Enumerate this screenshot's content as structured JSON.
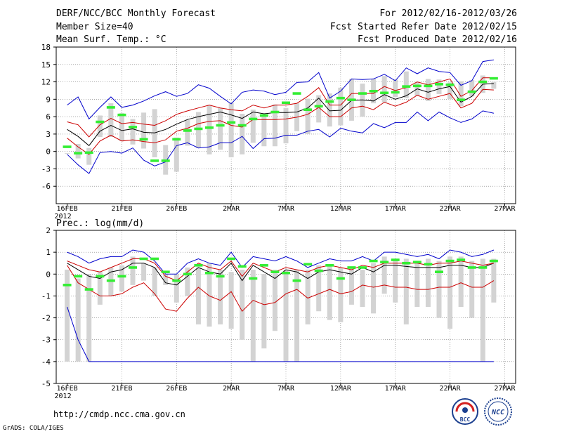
{
  "header": {
    "left": [
      "DERF/NCC/BCC Monthly Forecast",
      "Member Size=40",
      "Mean Surf. Temp.: °C"
    ],
    "right": [
      "For 2012/02/16-2012/03/26",
      "Fcst Started Refer Date 2012/02/15",
      "Fcst Produced Date 2012/02/16"
    ]
  },
  "footer": {
    "url": "http://cmdp.ncc.cma.gov.cn",
    "credit": "GrADS: COLA/IGES",
    "logo_left_text": "BCC",
    "logo_right_text": "NCC"
  },
  "colors": {
    "mean": "#000000",
    "spread": "#cc0000",
    "extreme": "#0000cc",
    "ensemble_bar": "#d3d3d3",
    "observed": "#33ee33",
    "grid": "#7a7a7a"
  },
  "chart_data": [
    {
      "type": "line",
      "title": "Mean Surf. Temp.: °C",
      "xlabels": [
        "16FEB\n2012",
        "21FEB",
        "26FEB",
        "2MAR",
        "7MAR",
        "12MAR",
        "17MAR",
        "22MAR",
        "27MAR"
      ],
      "xlabel_days": [
        1,
        6,
        11,
        16,
        21,
        26,
        31,
        36,
        41
      ],
      "ylim": [
        -9,
        18
      ],
      "yticks": [
        -6,
        -3,
        0,
        3,
        6,
        9,
        12,
        15,
        18
      ],
      "days": [
        1,
        2,
        3,
        4,
        5,
        6,
        7,
        8,
        9,
        10,
        11,
        12,
        13,
        14,
        15,
        16,
        17,
        18,
        19,
        20,
        21,
        22,
        23,
        24,
        25,
        26,
        27,
        28,
        29,
        30,
        31,
        32,
        33,
        34,
        35,
        36,
        37,
        38,
        39,
        40
      ],
      "series": [
        {
          "name": "mean",
          "values": [
            3.8,
            2.6,
            1,
            3.5,
            4.5,
            3.6,
            3.9,
            3.3,
            3.2,
            3.8,
            4.7,
            5.5,
            6,
            6.4,
            6.8,
            6.3,
            5.7,
            6.8,
            6.5,
            6.7,
            6.7,
            6.8,
            7.5,
            9.2,
            7,
            7.1,
            8.8,
            8.9,
            8.7,
            9.8,
            9,
            9.6,
            10.8,
            10.2,
            10.8,
            11.2,
            8.5,
            9.5,
            11.6,
            11.7
          ]
        },
        {
          "name": "upper_spread",
          "values": [
            5.1,
            4.6,
            2.5,
            4.6,
            5.7,
            4.8,
            5,
            4.7,
            4.5,
            5.3,
            6.4,
            7,
            7.5,
            8,
            7.5,
            7.2,
            7,
            8,
            7.5,
            8,
            8,
            8.3,
            9.5,
            11,
            8,
            8,
            10,
            10,
            10,
            11.2,
            10.5,
            11,
            12,
            11.5,
            12,
            12.5,
            9.5,
            10.5,
            12.7,
            12.7
          ]
        },
        {
          "name": "lower_spread",
          "values": [
            2.3,
            0.8,
            -0.5,
            1.8,
            2.8,
            1.8,
            2,
            1.7,
            1.5,
            2,
            3.5,
            4,
            4.8,
            5.2,
            5.3,
            4.5,
            4.2,
            5.5,
            5.5,
            5.5,
            5.6,
            5.9,
            6.4,
            7.6,
            6,
            6,
            7.5,
            7.8,
            7.2,
            8.5,
            7.8,
            8.5,
            9.7,
            9,
            9.5,
            10,
            7.5,
            8.3,
            10.7,
            10.6
          ]
        },
        {
          "name": "max",
          "values": [
            8,
            9.4,
            5.6,
            7.6,
            9.4,
            7.6,
            8,
            8.7,
            9.6,
            10.3,
            9.5,
            10,
            11.5,
            10.9,
            9.5,
            8.2,
            10.2,
            10.6,
            10.4,
            9.8,
            10.2,
            11.9,
            12,
            13.6,
            9.2,
            10.4,
            12.5,
            12.4,
            12.5,
            13.3,
            12.2,
            14.4,
            13.4,
            14.4,
            13.8,
            13.6,
            11.4,
            12.2,
            15.5,
            15.8
          ]
        },
        {
          "name": "min",
          "values": [
            -0.5,
            -2.3,
            -3.8,
            -0.2,
            0,
            -0.3,
            0.6,
            -1.5,
            -2.5,
            -1.8,
            1,
            1.5,
            0.6,
            0.8,
            1.5,
            1.5,
            2.6,
            0.5,
            2.2,
            2.3,
            2.8,
            2.8,
            3.5,
            3.8,
            2.5,
            4,
            3.5,
            3.2,
            4.8,
            4.1,
            5,
            5,
            6.8,
            5.3,
            6.8,
            5.8,
            5,
            5.6,
            7,
            6.6
          ]
        }
      ],
      "ensemble_range": [
        [
          1,
          -0.3
        ],
        [
          -1.2,
          1.3
        ],
        [
          -2.3,
          0.6
        ],
        [
          2.5,
          6.2
        ],
        [
          2.5,
          8.3
        ],
        [
          1.8,
          6.6
        ],
        [
          1.2,
          5.6
        ],
        [
          0.5,
          6.7
        ],
        [
          -1,
          7.3
        ],
        [
          -4,
          1.1
        ],
        [
          -3.5,
          2.4
        ],
        [
          1,
          5.4
        ],
        [
          0.6,
          6.8
        ],
        [
          -0.5,
          8
        ],
        [
          0.3,
          7.5
        ],
        [
          -1,
          8.4
        ],
        [
          -0.5,
          6.5
        ],
        [
          1.5,
          7.2
        ],
        [
          0.9,
          6.3
        ],
        [
          0.9,
          8.1
        ],
        [
          1.4,
          7.5
        ],
        [
          3.5,
          8.3
        ],
        [
          3,
          9.1
        ],
        [
          5,
          9.7
        ],
        [
          4.3,
          10
        ],
        [
          4.5,
          11
        ],
        [
          5.3,
          12.5
        ],
        [
          6,
          11.7
        ],
        [
          8.3,
          12.5
        ],
        [
          8.5,
          13
        ],
        [
          9.4,
          12.4
        ],
        [
          9.2,
          13.8
        ],
        [
          9.6,
          12
        ],
        [
          8.7,
          12.5
        ],
        [
          9.9,
          12.4
        ],
        [
          9,
          11.9
        ],
        [
          7.8,
          12.1
        ],
        [
          9.5,
          12.3
        ],
        [
          10.1,
          13.1
        ],
        [
          10.8,
          12
        ]
      ],
      "observed": [
        0.8,
        -0.3,
        -0.2,
        5.1,
        7.6,
        6.3,
        4.2,
        2.1,
        -1.6,
        -1.6,
        2.1,
        3.6,
        3.9,
        4.1,
        4.5,
        5,
        4.5,
        5.6,
        6.2,
        6.8,
        8.4,
        10,
        7.2,
        7.8,
        8.6,
        9.2,
        8.9,
        10,
        10.4,
        10.1,
        10.2,
        11.2,
        11.3,
        11.3,
        11.6,
        11.5,
        8.9,
        10.3,
        12,
        12.6
      ]
    },
    {
      "type": "line",
      "title": "Prec.: log(mm/d)",
      "xlabels": [
        "16FEB\n2012",
        "21FEB",
        "26FEB",
        "2MAR",
        "7MAR",
        "12MAR",
        "17MAR",
        "22MAR",
        "27MAR"
      ],
      "xlabel_days": [
        1,
        6,
        11,
        16,
        21,
        26,
        31,
        36,
        41
      ],
      "ylim": [
        -5,
        2
      ],
      "yticks": [
        -5,
        -4,
        -3,
        -2,
        -1,
        0,
        1,
        2
      ],
      "days": [
        1,
        2,
        3,
        4,
        5,
        6,
        7,
        8,
        9,
        10,
        11,
        12,
        13,
        14,
        15,
        16,
        17,
        18,
        19,
        20,
        21,
        22,
        23,
        24,
        25,
        26,
        27,
        28,
        29,
        30,
        31,
        32,
        33,
        34,
        35,
        36,
        37,
        38,
        39,
        40
      ],
      "series": [
        {
          "name": "mean",
          "values": [
            0.5,
            0.2,
            -0.1,
            -0.2,
            0.1,
            0.2,
            0.5,
            0.5,
            0.3,
            -0.4,
            -0.5,
            -0.1,
            0.3,
            0.1,
            0,
            0.5,
            -0.3,
            0.4,
            0.1,
            -0.2,
            0.2,
            0.1,
            -0.2,
            0.1,
            0.2,
            0.1,
            0,
            0.3,
            0.1,
            0.4,
            0.4,
            0.35,
            0.3,
            0.3,
            0.3,
            0.4,
            0.4,
            0.3,
            0.3,
            0.5
          ]
        },
        {
          "name": "upper_spread",
          "values": [
            0.6,
            0.4,
            0.2,
            0.1,
            0.3,
            0.5,
            0.7,
            0.7,
            0.5,
            -0.1,
            -0.3,
            0.1,
            0.5,
            0.3,
            0.2,
            0.6,
            -0.1,
            0.5,
            0.3,
            0.1,
            0.3,
            0.2,
            0.1,
            0.3,
            0.4,
            0.3,
            0.2,
            0.4,
            0.3,
            0.5,
            0.5,
            0.5,
            0.5,
            0.4,
            0.5,
            0.5,
            0.6,
            0.5,
            0.4,
            0.5
          ]
        },
        {
          "name": "lower_spread",
          "values": [
            0.4,
            -0.4,
            -0.7,
            -1,
            -1,
            -0.9,
            -0.6,
            -0.4,
            -0.9,
            -1.6,
            -1.7,
            -1.1,
            -0.6,
            -1,
            -1.2,
            -0.8,
            -1.7,
            -1.2,
            -1.4,
            -1.3,
            -0.9,
            -0.7,
            -1.1,
            -0.9,
            -0.7,
            -0.9,
            -0.8,
            -0.5,
            -0.6,
            -0.5,
            -0.6,
            -0.6,
            -0.7,
            -0.7,
            -0.6,
            -0.6,
            -0.4,
            -0.6,
            -0.6,
            -0.3
          ]
        },
        {
          "name": "max",
          "values": [
            1,
            0.8,
            0.5,
            0.7,
            0.8,
            0.8,
            1.1,
            1,
            0.6,
            0,
            0,
            0.5,
            0.7,
            0.5,
            0.4,
            1,
            0.3,
            0.8,
            0.7,
            0.6,
            0.8,
            0.6,
            0.3,
            0.5,
            0.7,
            0.6,
            0.6,
            0.8,
            0.6,
            1,
            1,
            0.9,
            0.8,
            0.9,
            0.7,
            1.1,
            1,
            0.8,
            0.9,
            1.1
          ]
        },
        {
          "name": "min",
          "values": [
            -1.5,
            -3,
            -4,
            -4,
            -4,
            -4,
            -4,
            -4,
            -4,
            -4,
            -4,
            -4,
            -4,
            -4,
            -4,
            -4,
            -4,
            -4,
            -4,
            -4,
            -4,
            -4,
            -4,
            -4,
            -4,
            -4,
            -4,
            -4,
            -4,
            -4,
            -4,
            -4,
            -4,
            -4,
            -4,
            -4,
            -4,
            -4,
            -4,
            -4
          ]
        }
      ],
      "ensemble_range": [
        [
          -4,
          0.2
        ],
        [
          -4,
          -0.2
        ],
        [
          -4,
          0
        ],
        [
          -1.4,
          0.1
        ],
        [
          -1,
          0.3
        ],
        [
          -0.8,
          0.4
        ],
        [
          -0.5,
          0.8
        ],
        [
          -0.3,
          0.5
        ],
        [
          -1,
          0.3
        ],
        [
          -0.5,
          0
        ],
        [
          -1.3,
          0
        ],
        [
          -1,
          0.3
        ],
        [
          -2.3,
          0.3
        ],
        [
          -2.4,
          0.5
        ],
        [
          -2.3,
          0.2
        ],
        [
          -2.5,
          0.1
        ],
        [
          -3,
          0.2
        ],
        [
          -4,
          0.2
        ],
        [
          -3.4,
          0
        ],
        [
          -2.6,
          0.2
        ],
        [
          -4,
          0.2
        ],
        [
          -4,
          0.2
        ],
        [
          -2.3,
          0.2
        ],
        [
          -1.7,
          0.4
        ],
        [
          -2.1,
          0.4
        ],
        [
          -2.2,
          0.3
        ],
        [
          -1.4,
          0.3
        ],
        [
          -1.5,
          0.2
        ],
        [
          -1.8,
          0.5
        ],
        [
          -0.9,
          0.8
        ],
        [
          -1.3,
          0.7
        ],
        [
          -2.3,
          0.7
        ],
        [
          -1.5,
          0.6
        ],
        [
          -1.5,
          0.7
        ],
        [
          -2,
          0.6
        ],
        [
          -2.5,
          0.8
        ],
        [
          -1.5,
          0.8
        ],
        [
          -2,
          0.6
        ],
        [
          -4,
          0.7
        ],
        [
          -1.3,
          0.7
        ]
      ],
      "observed": [
        -0.5,
        -0.1,
        -0.7,
        -0.1,
        -0.3,
        -0.1,
        0.3,
        0.7,
        0.7,
        0.1,
        -0.3,
        0,
        0.4,
        0.05,
        -0.1,
        0.7,
        0.35,
        -0.2,
        0.4,
        0.1,
        0.05,
        -0.3,
        0.45,
        0.15,
        0.4,
        -0.2,
        0.3,
        0.3,
        0.6,
        0.55,
        0.65,
        0.5,
        0.55,
        0.45,
        0.1,
        0.6,
        0.65,
        0.3,
        0.3,
        0.6
      ]
    }
  ]
}
